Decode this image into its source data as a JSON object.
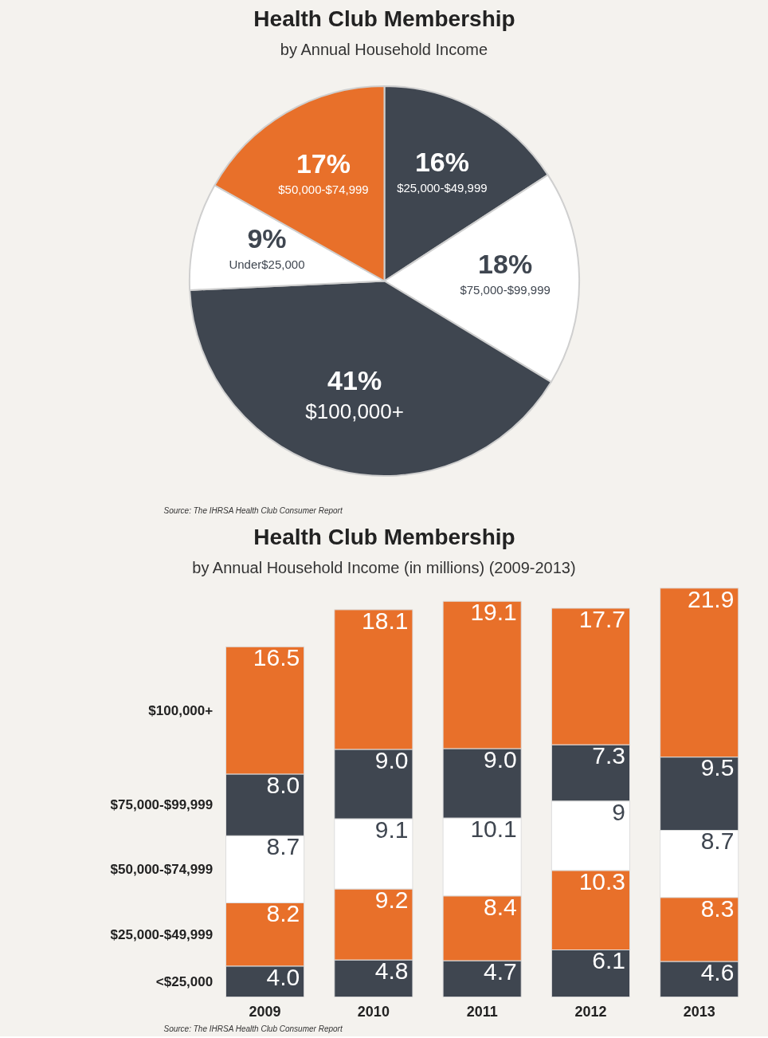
{
  "chart_data": [
    {
      "type": "pie",
      "title": "Health Club Membership",
      "subtitle": "by Annual Household Income",
      "categories": [
        "$25,000-$49,999",
        "$75,000-$99,999",
        "$100,000+",
        "Under$25,000",
        "$50,000-$74,999"
      ],
      "values": [
        16,
        18,
        41,
        9,
        17
      ],
      "colors": [
        "#3f4650",
        "#ffffff",
        "#3f4650",
        "#ffffff",
        "#e8702a"
      ],
      "value_labels": [
        "16%",
        "18%",
        "41%",
        "9%",
        "17%"
      ],
      "annotations": [
        "Source: The IHRSA Health Club Consumer Report"
      ]
    },
    {
      "type": "bar",
      "stacked": true,
      "title": "Health Club Membership",
      "subtitle": "by Annual Household Income (in millions) (2009-2013)",
      "categories": [
        "2009",
        "2010",
        "2011",
        "2012",
        "2013"
      ],
      "series": [
        {
          "name": "<$25,000",
          "color": "#3f4650",
          "values": [
            4.0,
            4.8,
            4.7,
            6.1,
            4.6
          ],
          "value_labels": [
            "4.0",
            "4.8",
            "4.7",
            "6.1",
            "4.6"
          ]
        },
        {
          "name": "$25,000-$49,999",
          "color": "#e8702a",
          "values": [
            8.2,
            9.2,
            8.4,
            10.3,
            8.3
          ],
          "value_labels": [
            "8.2",
            "9.2",
            "8.4",
            "10.3",
            "8.3"
          ]
        },
        {
          "name": "$50,000-$74,999",
          "color": "#ffffff",
          "values": [
            8.7,
            9.1,
            10.1,
            9,
            8.7
          ],
          "value_labels": [
            "8.7",
            "9.1",
            "10.1",
            "9",
            "8.7"
          ]
        },
        {
          "name": "$75,000-$99,999",
          "color": "#3f4650",
          "values": [
            8.0,
            9.0,
            9.0,
            7.3,
            9.5
          ],
          "value_labels": [
            "8.0",
            "9.0",
            "9.0",
            "7.3",
            "9.5"
          ]
        },
        {
          "name": "$100,000+",
          "color": "#e8702a",
          "values": [
            16.5,
            18.1,
            19.1,
            17.7,
            21.9
          ],
          "value_labels": [
            "16.5",
            "18.1",
            "19.1",
            "17.7",
            "21.9"
          ]
        }
      ],
      "annotations": [
        "Source: The IHRSA Health Club Consumer Report"
      ]
    }
  ]
}
